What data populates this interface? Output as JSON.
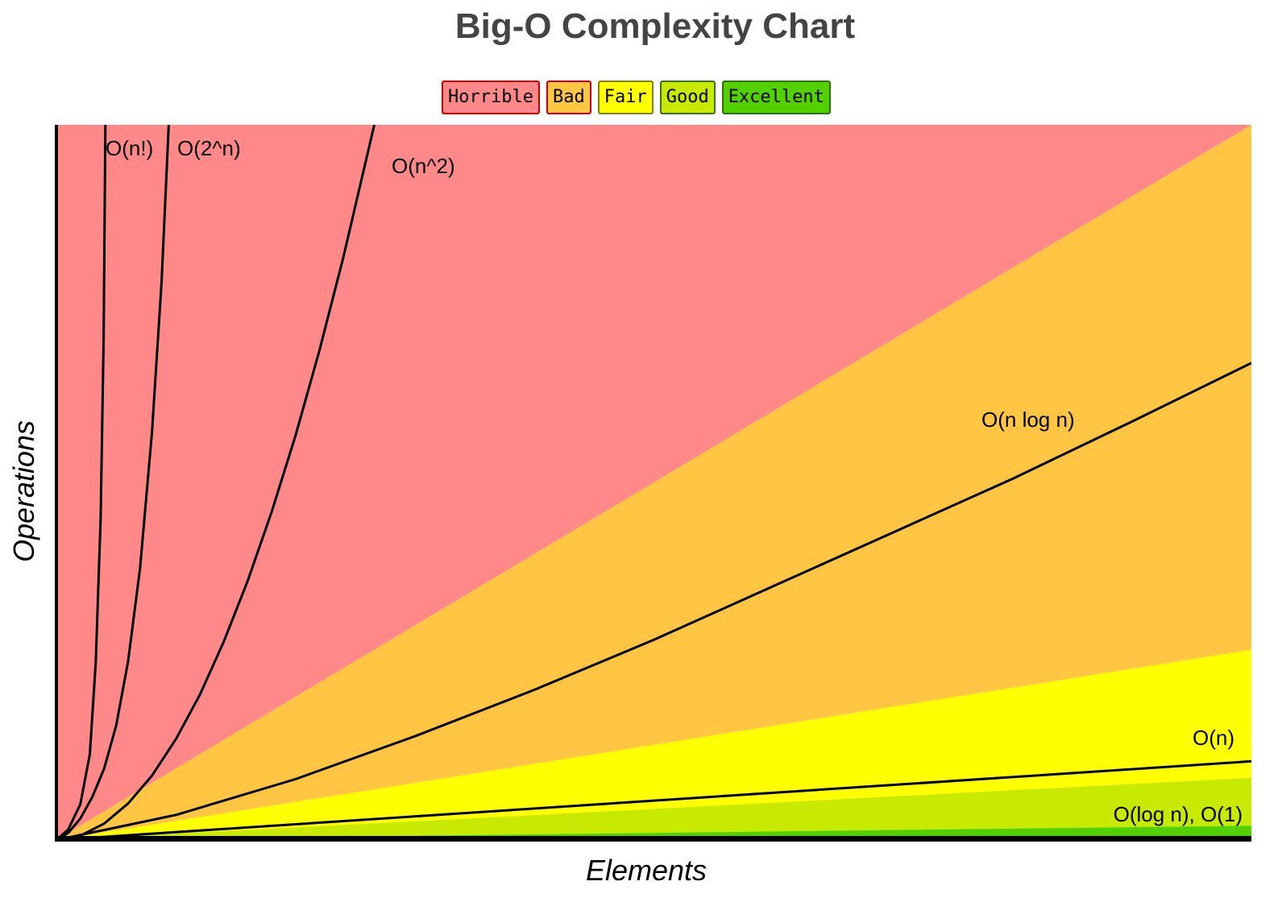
{
  "chart_data": {
    "type": "area",
    "title": "Big-O Complexity Chart",
    "xlabel": "Elements",
    "ylabel": "Operations",
    "xlim": [
      0,
      100
    ],
    "ylim": [
      0,
      100
    ],
    "grid": false,
    "legend_placement": "top-center",
    "legend": [
      {
        "label": "Horrible",
        "color": "#ff8989",
        "border": "#c00000"
      },
      {
        "label": "Bad",
        "color": "#ffc543",
        "border": "#c00000"
      },
      {
        "label": "Fair",
        "color": "#ffff00",
        "border": "#808000"
      },
      {
        "label": "Good",
        "color": "#c8ea00",
        "border": "#407000"
      },
      {
        "label": "Excellent",
        "color": "#53d000",
        "border": "#307000"
      }
    ],
    "regions": [
      {
        "name": "Horrible",
        "upper_slope": null,
        "lower_slope": 1.0
      },
      {
        "name": "Bad",
        "upper_slope": 1.0,
        "lower_slope": 0.266
      },
      {
        "name": "Fair",
        "upper_slope": 0.266,
        "lower_slope": 0.087
      },
      {
        "name": "Good",
        "upper_slope": 0.087,
        "lower_slope": 0.02
      },
      {
        "name": "Excellent",
        "upper_slope": 0.02,
        "lower_slope": 0
      }
    ],
    "series": [
      {
        "name": "O(n!)",
        "x": [
          0,
          1,
          2,
          2.8,
          3.3,
          3.7,
          3.95,
          4.1
        ],
        "y": [
          0,
          1.5,
          5,
          12,
          25,
          45,
          70,
          100
        ]
      },
      {
        "name": "O(2^n)",
        "x": [
          0,
          1,
          2,
          3,
          4,
          5,
          6,
          7,
          8,
          8.8,
          9.4
        ],
        "y": [
          0,
          1,
          3,
          6,
          10,
          16,
          25,
          38,
          57,
          78,
          100
        ]
      },
      {
        "name": "O(n^2)",
        "x": [
          0,
          2,
          4,
          6,
          8,
          10,
          12,
          14,
          16,
          18,
          20,
          22,
          24,
          26.6
        ],
        "y": [
          0,
          0.6,
          2.3,
          5.1,
          9,
          14.1,
          20.3,
          27.7,
          36.2,
          45.8,
          56.5,
          68.4,
          81.4,
          100
        ]
      },
      {
        "name": "O(n log n)",
        "x": [
          0,
          10,
          20,
          30,
          40,
          50,
          60,
          70,
          80,
          90,
          100
        ],
        "y": [
          0,
          3.5,
          8.5,
          14.5,
          21,
          28,
          35.5,
          43,
          50.5,
          58.5,
          66.7
        ]
      },
      {
        "name": "O(n)",
        "x": [
          0,
          100
        ],
        "y": [
          0,
          11
        ]
      },
      {
        "name": "O(log n), O(1)",
        "x": [
          0,
          100
        ],
        "y": [
          0,
          0.4
        ]
      }
    ]
  }
}
